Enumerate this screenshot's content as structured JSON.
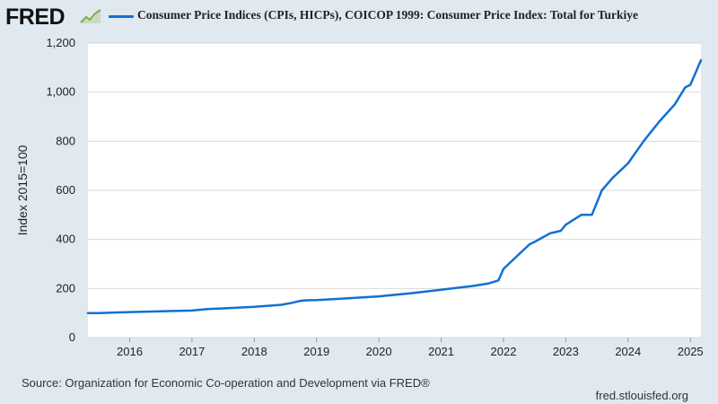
{
  "header": {
    "logo_text": "FRED",
    "legend_label": "Consumer Price Indices (CPIs, HICPs), COICOP 1999: Consumer Price Index: Total for Turkiye"
  },
  "footer": {
    "source": "Source: Organization for Economic Co-operation and Development via FRED®",
    "site": "fred.stlouisfed.org"
  },
  "colors": {
    "series": "#1170d4",
    "background": "#e1e9f0",
    "plot": "#ffffff",
    "grid": "#d9d9d9"
  },
  "chart_data": {
    "type": "line",
    "title": "Consumer Price Indices (CPIs, HICPs), COICOP 1999: Consumer Price Index: Total for Turkiye",
    "xlabel": "",
    "ylabel": "Index 2015=100",
    "xlim": [
      2015.33,
      2025.17
    ],
    "ylim": [
      0,
      1200
    ],
    "y_ticks": [
      0,
      200,
      400,
      600,
      800,
      1000,
      1200
    ],
    "y_tick_labels": [
      "0",
      "200",
      "400",
      "600",
      "800",
      "1,000",
      "1,200"
    ],
    "x_ticks": [
      2016,
      2017,
      2018,
      2019,
      2020,
      2021,
      2022,
      2023,
      2024,
      2025
    ],
    "x_tick_labels": [
      "2016",
      "2017",
      "2018",
      "2019",
      "2020",
      "2021",
      "2022",
      "2023",
      "2024",
      "2025"
    ],
    "grid": true,
    "series": [
      {
        "name": "Consumer Price Index: Total for Turkiye",
        "x": [
          2015.33,
          2015.5,
          2016.0,
          2016.5,
          2017.0,
          2017.25,
          2017.5,
          2018.0,
          2018.42,
          2018.58,
          2018.75,
          2018.83,
          2019.0,
          2019.5,
          2020.0,
          2020.5,
          2021.0,
          2021.5,
          2021.75,
          2021.92,
          2022.0,
          2022.25,
          2022.42,
          2022.5,
          2022.75,
          2022.92,
          2023.0,
          2023.25,
          2023.42,
          2023.58,
          2023.75,
          2024.0,
          2024.25,
          2024.5,
          2024.75,
          2024.92,
          2025.0,
          2025.17
        ],
        "values": [
          100,
          100,
          104,
          107,
          110,
          116,
          119,
          125,
          133,
          140,
          150,
          152,
          153,
          160,
          168,
          180,
          195,
          210,
          220,
          233,
          280,
          340,
          380,
          390,
          425,
          435,
          460,
          500,
          500,
          600,
          650,
          710,
          800,
          880,
          950,
          1020,
          1030,
          1130
        ]
      }
    ]
  }
}
